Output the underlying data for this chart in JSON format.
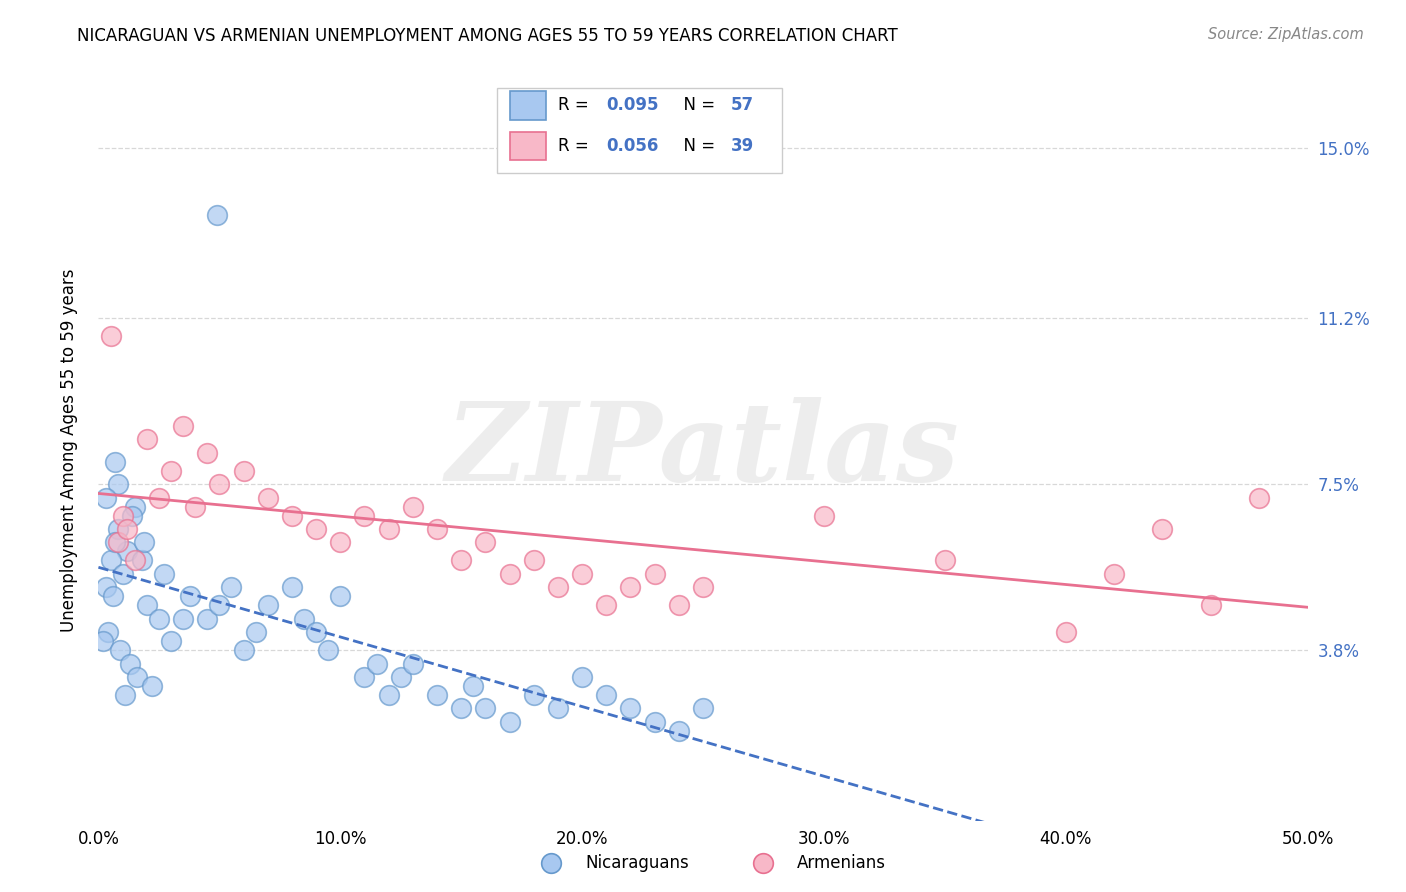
{
  "title": "NICARAGUAN VS ARMENIAN UNEMPLOYMENT AMONG AGES 55 TO 59 YEARS CORRELATION CHART",
  "source": "Source: ZipAtlas.com",
  "ylabel": "Unemployment Among Ages 55 to 59 years",
  "xlim": [
    0.0,
    0.5
  ],
  "ylim": [
    0.0,
    0.165
  ],
  "xticks": [
    0.0,
    0.1,
    0.2,
    0.3,
    0.4,
    0.5
  ],
  "xticklabels": [
    "0.0%",
    "10.0%",
    "20.0%",
    "30.0%",
    "40.0%",
    "50.0%"
  ],
  "ytick_positions": [
    0.038,
    0.075,
    0.112,
    0.15
  ],
  "ytick_labels": [
    "3.8%",
    "7.5%",
    "11.2%",
    "15.0%"
  ],
  "nic_fill": "#A8C8F0",
  "nic_edge": "#6699CC",
  "arm_fill": "#F8B8C8",
  "arm_edge": "#E87090",
  "nic_line_color": "#4472C4",
  "arm_line_color": "#E87090",
  "watermark": "ZIPatlas",
  "grid_color": "#C8C8C8",
  "nic_x": [
    0.008,
    0.012,
    0.005,
    0.003,
    0.015,
    0.01,
    0.02,
    0.007,
    0.025,
    0.018,
    0.004,
    0.006,
    0.002,
    0.009,
    0.013,
    0.016,
    0.022,
    0.011,
    0.03,
    0.035,
    0.008,
    0.014,
    0.003,
    0.007,
    0.019,
    0.027,
    0.038,
    0.045,
    0.05,
    0.055,
    0.06,
    0.065,
    0.07,
    0.08,
    0.085,
    0.09,
    0.095,
    0.1,
    0.11,
    0.115,
    0.12,
    0.125,
    0.13,
    0.14,
    0.15,
    0.155,
    0.16,
    0.17,
    0.18,
    0.19,
    0.2,
    0.21,
    0.22,
    0.23,
    0.24,
    0.25,
    0.049
  ],
  "nic_y": [
    0.065,
    0.06,
    0.058,
    0.052,
    0.07,
    0.055,
    0.048,
    0.062,
    0.045,
    0.058,
    0.042,
    0.05,
    0.04,
    0.038,
    0.035,
    0.032,
    0.03,
    0.028,
    0.04,
    0.045,
    0.075,
    0.068,
    0.072,
    0.08,
    0.062,
    0.055,
    0.05,
    0.045,
    0.048,
    0.052,
    0.038,
    0.042,
    0.048,
    0.052,
    0.045,
    0.042,
    0.038,
    0.05,
    0.032,
    0.035,
    0.028,
    0.032,
    0.035,
    0.028,
    0.025,
    0.03,
    0.025,
    0.022,
    0.028,
    0.025,
    0.032,
    0.028,
    0.025,
    0.022,
    0.02,
    0.025,
    0.135
  ],
  "arm_x": [
    0.005,
    0.01,
    0.008,
    0.015,
    0.02,
    0.025,
    0.03,
    0.012,
    0.035,
    0.04,
    0.045,
    0.05,
    0.06,
    0.07,
    0.08,
    0.09,
    0.1,
    0.11,
    0.12,
    0.13,
    0.14,
    0.15,
    0.16,
    0.17,
    0.18,
    0.19,
    0.2,
    0.21,
    0.22,
    0.23,
    0.24,
    0.25,
    0.3,
    0.35,
    0.4,
    0.42,
    0.44,
    0.46,
    0.48
  ],
  "arm_y": [
    0.108,
    0.068,
    0.062,
    0.058,
    0.085,
    0.072,
    0.078,
    0.065,
    0.088,
    0.07,
    0.082,
    0.075,
    0.078,
    0.072,
    0.068,
    0.065,
    0.062,
    0.068,
    0.065,
    0.07,
    0.065,
    0.058,
    0.062,
    0.055,
    0.058,
    0.052,
    0.055,
    0.048,
    0.052,
    0.055,
    0.048,
    0.052,
    0.068,
    0.058,
    0.042,
    0.055,
    0.065,
    0.048,
    0.072
  ]
}
